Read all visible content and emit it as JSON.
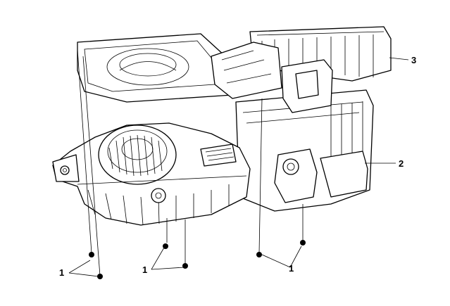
{
  "diagram": {
    "callouts": {
      "fastener_group_left": "1",
      "fastener_group_middle": "1",
      "fastener_group_right": "1",
      "case_lower": "2",
      "case_upper": "3"
    }
  }
}
